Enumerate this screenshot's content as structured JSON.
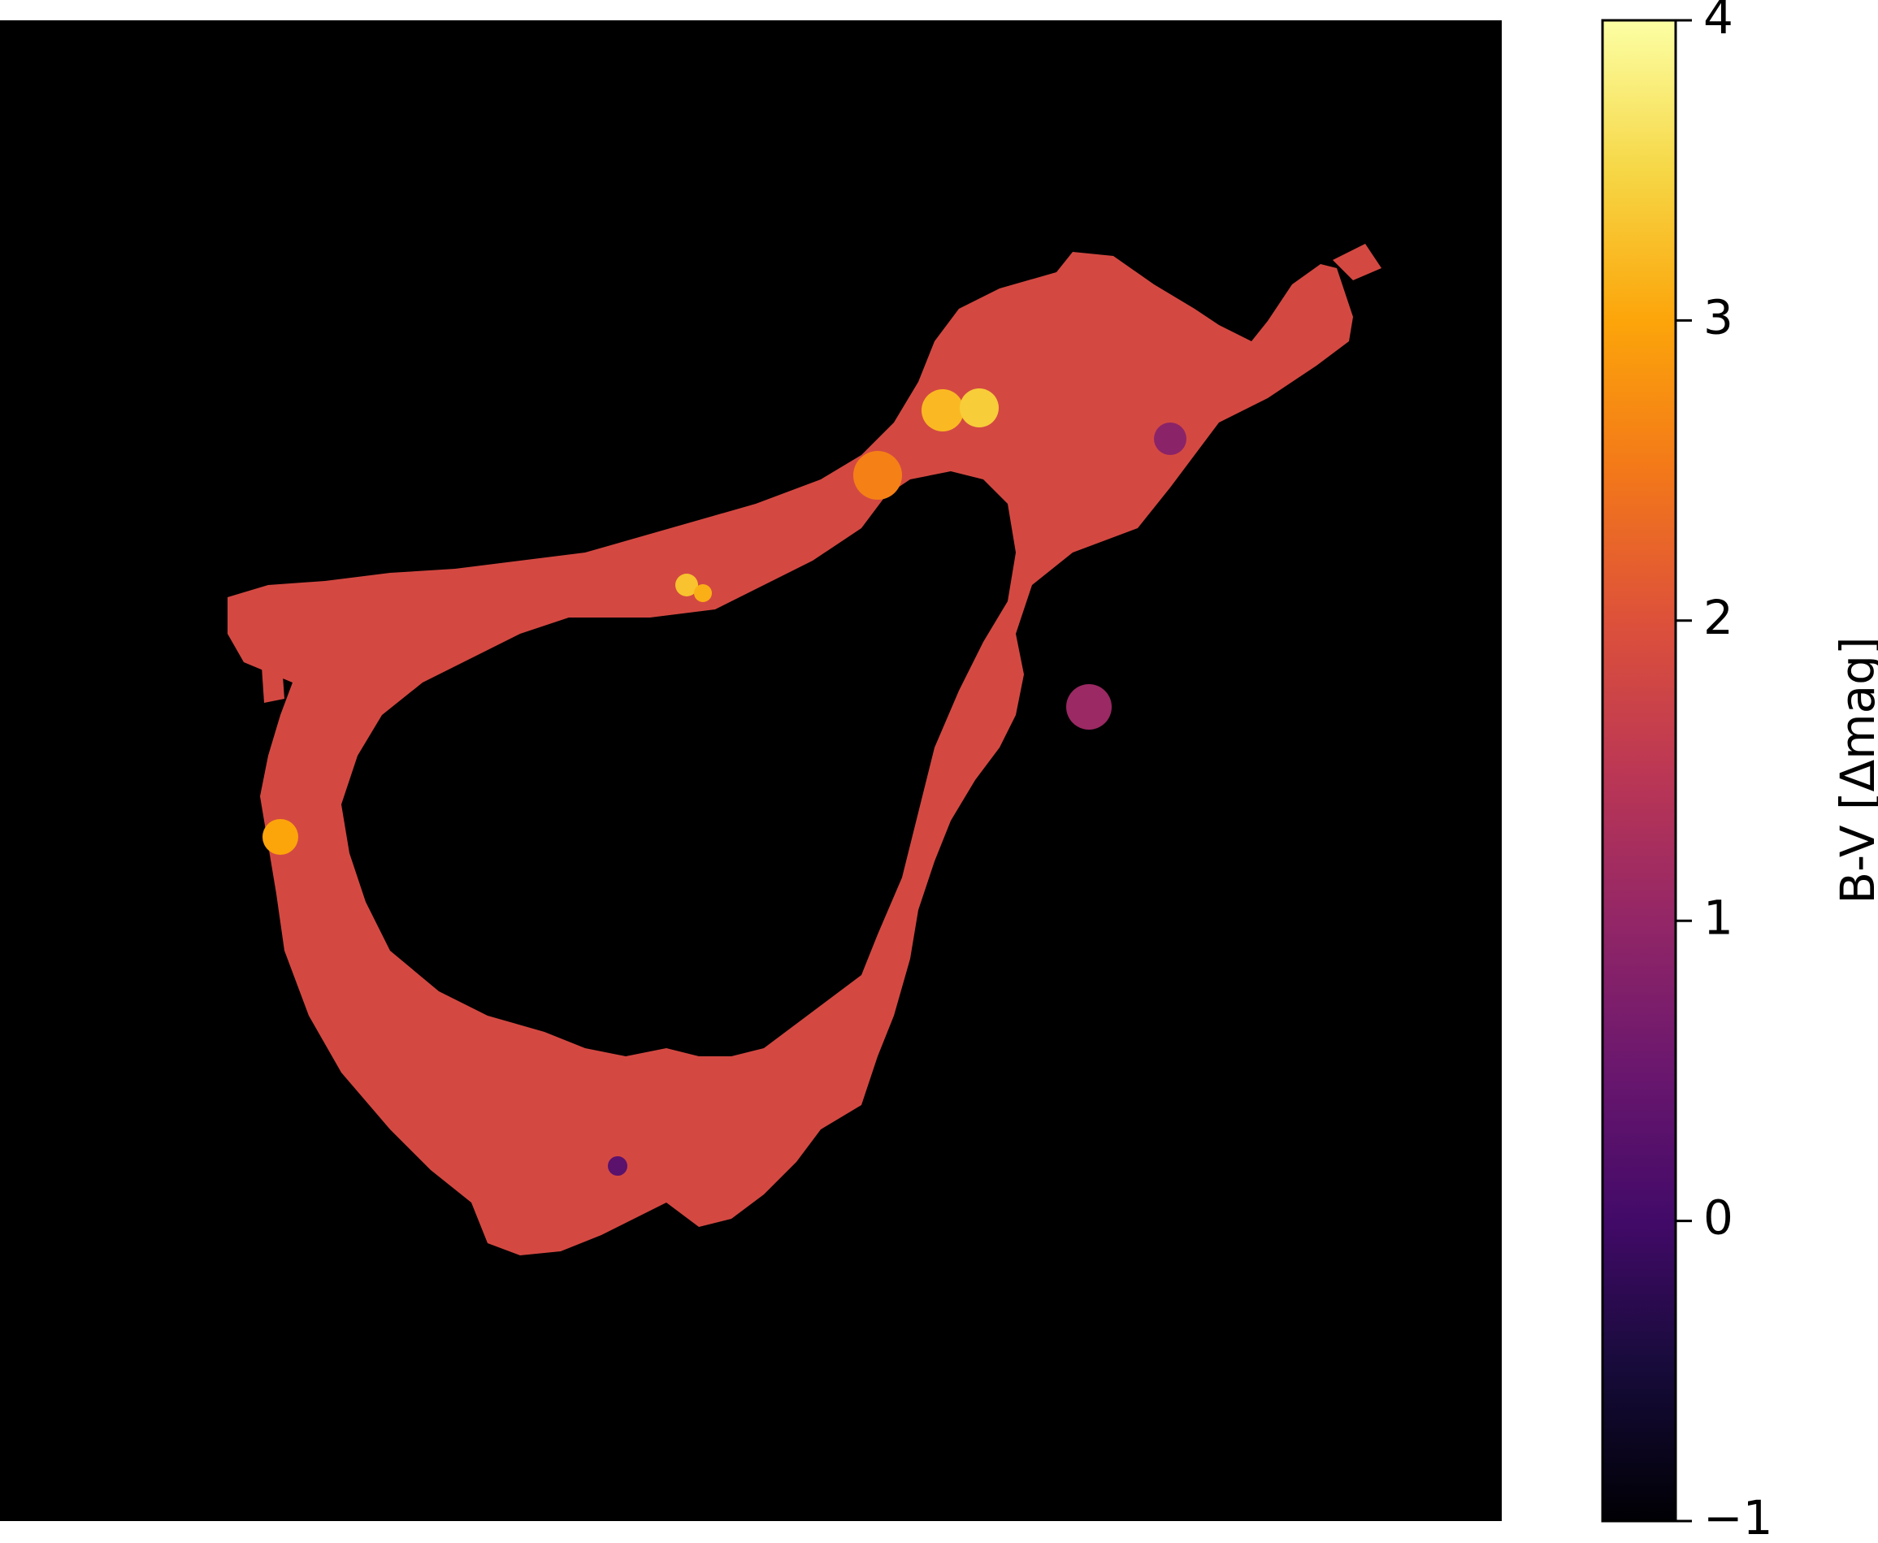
{
  "chart_data": {
    "type": "heatmap",
    "title": "",
    "xlabel": "",
    "ylabel": "",
    "image": {
      "background_color": "#000000",
      "description_colormap": "inferno",
      "region_base_value": 1.85,
      "features": [
        {
          "kind": "bright_spot",
          "value": 3.2
        },
        {
          "kind": "bright_spot",
          "value": 3.4
        },
        {
          "kind": "bright_spot",
          "value": 2.6
        },
        {
          "kind": "bright_spot",
          "value": 3.3
        },
        {
          "kind": "bright_spot",
          "value": 3.1
        },
        {
          "kind": "bright_spot",
          "value": 3.0
        },
        {
          "kind": "dark_spot",
          "value": 1.1
        },
        {
          "kind": "dark_spot",
          "value": 0.9
        },
        {
          "kind": "dark_spot",
          "value": 0.3
        }
      ]
    },
    "colorbar": {
      "label": "B-V [Δmag]",
      "vmin": -1,
      "vmax": 4,
      "ticks": [
        -1,
        0,
        1,
        2,
        3,
        4
      ],
      "tick_labels": [
        "−1",
        "0",
        "1",
        "2",
        "3",
        "4"
      ],
      "colormap": "inferno",
      "colormap_stops": [
        {
          "value": 0.0,
          "color": "#000004"
        },
        {
          "value": 0.1,
          "color": "#160b39"
        },
        {
          "value": 0.2,
          "color": "#420a68"
        },
        {
          "value": 0.3,
          "color": "#6a176e"
        },
        {
          "value": 0.4,
          "color": "#932667"
        },
        {
          "value": 0.5,
          "color": "#bc3754"
        },
        {
          "value": 0.6,
          "color": "#dd513a"
        },
        {
          "value": 0.7,
          "color": "#f37819"
        },
        {
          "value": 0.8,
          "color": "#fca50a"
        },
        {
          "value": 0.9,
          "color": "#f6d746"
        },
        {
          "value": 1.0,
          "color": "#fcffa4"
        }
      ]
    }
  }
}
